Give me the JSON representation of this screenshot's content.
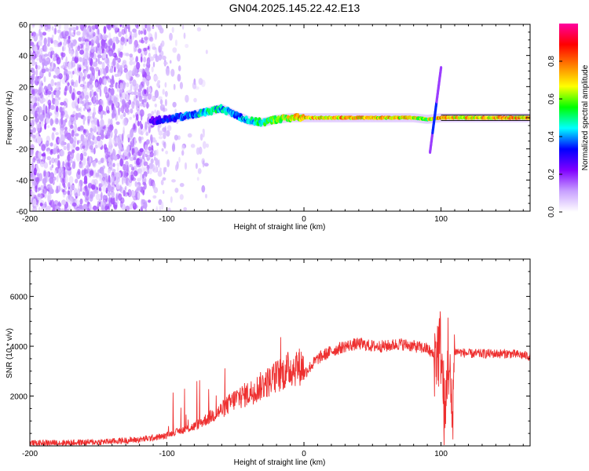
{
  "title": "GN04.2025.145.22.42.E13",
  "chart_data": [
    {
      "type": "heatmap",
      "xlabel": "Height of straight line (km)",
      "ylabel": "Frequency (Hz)",
      "xlim": [
        -200,
        165
      ],
      "ylim": [
        -60,
        60
      ],
      "xticks": [
        -200,
        -100,
        0,
        100
      ],
      "xtick_labels": [
        "-200",
        "-100",
        "0",
        "100"
      ],
      "yticks": [
        60,
        40,
        20,
        0,
        -20,
        -40,
        -60
      ],
      "ytick_labels": [
        "60",
        "40",
        "20",
        "0",
        "-20",
        "-40",
        "-60"
      ],
      "colorbar": {
        "label": "Normalized spectral amplitude",
        "range": [
          0,
          1
        ],
        "ticks": [
          0,
          0.2,
          0.4,
          0.6,
          0.8
        ],
        "tick_labels": [
          "0.0",
          "0.2",
          "0.4",
          "0.6",
          "0.8"
        ],
        "colors": [
          "#ffffff",
          "#c8a0ff",
          "#8000ff",
          "#0000ff",
          "#00ffff",
          "#00ff00",
          "#ffff00",
          "#ff8000",
          "#ff0000",
          "#ff00a0"
        ]
      },
      "band": {
        "x": [
          -112,
          -100,
          -80,
          -70,
          -60,
          -50,
          -40,
          -30,
          -20,
          -10,
          0,
          20,
          40,
          60,
          80,
          90,
          100,
          120,
          140,
          165
        ],
        "frequency": [
          -2,
          -1,
          2,
          4,
          6,
          2,
          -2,
          -3,
          -1,
          0,
          0,
          0,
          0,
          0,
          0,
          -1,
          0,
          0,
          0,
          0
        ],
        "amplitude": [
          0.3,
          0.35,
          0.45,
          0.55,
          0.5,
          0.45,
          0.5,
          0.55,
          0.65,
          0.75,
          0.8,
          0.8,
          0.8,
          0.8,
          0.75,
          0.7,
          0.85,
          0.8,
          0.8,
          0.85
        ]
      },
      "streak": {
        "x": [
          92,
          100
        ],
        "frequency": [
          -22,
          32
        ]
      }
    },
    {
      "type": "line",
      "xlabel": "Height of straight line (km)",
      "ylabel": "SNR (10 * v/v)",
      "xlim": [
        -200,
        165
      ],
      "ylim": [
        0,
        7500
      ],
      "xticks": [
        -200,
        -100,
        0,
        100
      ],
      "xtick_labels": [
        "-200",
        "-100",
        "0",
        "100"
      ],
      "yticks": [
        2000,
        4000,
        6000
      ],
      "ytick_labels": [
        "2000",
        "4000",
        "6000"
      ],
      "color": "#ee3030",
      "x": [
        -200,
        -150,
        -120,
        -100,
        -90,
        -80,
        -70,
        -60,
        -50,
        -40,
        -30,
        -20,
        -10,
        0,
        10,
        20,
        30,
        40,
        50,
        60,
        70,
        80,
        90,
        95,
        100,
        103,
        105,
        108,
        110,
        120,
        130,
        140,
        150,
        165
      ],
      "y": [
        100,
        150,
        250,
        400,
        550,
        700,
        1000,
        1300,
        1700,
        1900,
        2200,
        2500,
        2800,
        2900,
        3500,
        3800,
        4000,
        4100,
        4000,
        4000,
        4100,
        4000,
        3900,
        3600,
        4000,
        600,
        4000,
        1000,
        3800,
        3700,
        3700,
        3700,
        3700,
        3600
      ]
    }
  ]
}
